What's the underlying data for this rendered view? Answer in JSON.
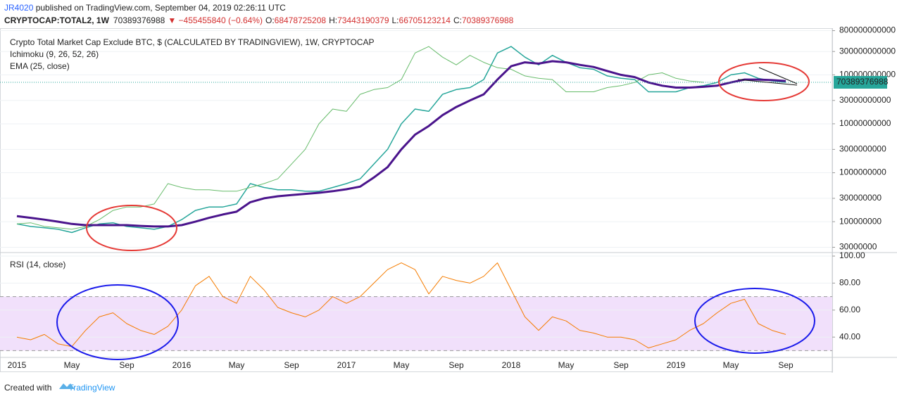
{
  "header": {
    "author": "JR4020",
    "published": " published on TradingView.com, September 04, 2019 02:26:11 UTC",
    "symbol": "CRYPTOCAP:TOTAL2, 1W",
    "last": "70389376988",
    "change": "▼ −455455840 (−0.64%)",
    "ohlc": [
      {
        "label": "O:",
        "value": "68478725208"
      },
      {
        "label": "H:",
        "value": "73443190379"
      },
      {
        "label": "L:",
        "value": "66705123214"
      },
      {
        "label": "C:",
        "value": "70389376988"
      }
    ]
  },
  "footer": {
    "created": "Created with",
    "brand": "TradingView"
  },
  "chart_data": [
    {
      "type": "line",
      "title": "Crypto Total Market Cap Exclude BTC, $ (CALCULATED BY TRADINGVIEW), 1W, CRYPTOCAP",
      "log_scale": true,
      "grid": true,
      "categories": [
        "2015",
        null,
        null,
        null,
        "May",
        null,
        null,
        null,
        "Sep",
        null,
        null,
        null,
        "2016",
        null,
        null,
        null,
        "May",
        null,
        null,
        null,
        "Sep",
        null,
        null,
        null,
        "2017",
        null,
        null,
        null,
        "May",
        null,
        null,
        null,
        "Sep",
        null,
        null,
        null,
        "2018",
        null,
        null,
        null,
        "May",
        null,
        null,
        null,
        "Sep",
        null,
        null,
        null,
        "2019",
        null,
        null,
        null,
        "May",
        null,
        null,
        null,
        "Sep",
        null,
        null,
        null
      ],
      "series": [
        {
          "color": "#26a69a",
          "width": 1.5,
          "values": [
            90000000,
            80000000,
            75000000,
            70000000,
            60000000,
            75000000,
            90000000,
            95000000,
            80000000,
            75000000,
            70000000,
            80000000,
            110000000,
            170000000,
            200000000,
            200000000,
            230000000,
            600000000,
            500000000,
            450000000,
            450000000,
            420000000,
            420000000,
            500000000,
            600000000,
            750000000,
            1500000000,
            3000000000,
            10000000000,
            20000000000,
            18000000000,
            40000000000,
            50000000000,
            55000000000,
            80000000000,
            280000000000,
            380000000000,
            230000000000,
            160000000000,
            250000000000,
            180000000000,
            140000000000,
            130000000000,
            95000000000,
            85000000000,
            80000000000,
            45000000000,
            45000000000,
            45000000000,
            55000000000,
            60000000000,
            70000000000,
            100000000000,
            110000000000,
            85000000000,
            75000000000,
            70389376988,
            null,
            null,
            null
          ]
        },
        {
          "name": "Ichimoku (9, 26, 52, 26)",
          "color": "#66bb6a",
          "width": 1,
          "values": [
            90000000,
            95000000,
            80000000,
            75000000,
            70000000,
            80000000,
            110000000,
            170000000,
            200000000,
            200000000,
            230000000,
            600000000,
            500000000,
            450000000,
            450000000,
            420000000,
            420000000,
            500000000,
            600000000,
            750000000,
            1500000000,
            3000000000,
            10000000000,
            20000000000,
            18000000000,
            40000000000,
            50000000000,
            55000000000,
            80000000000,
            280000000000,
            380000000000,
            230000000000,
            160000000000,
            250000000000,
            180000000000,
            140000000000,
            130000000000,
            95000000000,
            85000000000,
            80000000000,
            45000000000,
            45000000000,
            45000000000,
            55000000000,
            60000000000,
            70000000000,
            100000000000,
            110000000000,
            85000000000,
            75000000000,
            70389376988,
            null,
            null,
            null,
            null,
            null,
            null,
            null,
            null,
            null
          ]
        },
        {
          "name": "EMA (25, close)",
          "color": "#4a148c",
          "width": 3,
          "values": [
            130000000,
            120000000,
            110000000,
            100000000,
            90000000,
            85000000,
            85000000,
            85000000,
            85000000,
            82000000,
            80000000,
            80000000,
            85000000,
            100000000,
            120000000,
            140000000,
            160000000,
            250000000,
            300000000,
            330000000,
            350000000,
            370000000,
            390000000,
            420000000,
            460000000,
            520000000,
            800000000,
            1300000000,
            3000000000,
            6000000000,
            9000000000,
            15000000000,
            22000000000,
            30000000000,
            40000000000,
            80000000000,
            150000000000,
            180000000000,
            170000000000,
            190000000000,
            180000000000,
            160000000000,
            145000000000,
            120000000000,
            100000000000,
            90000000000,
            70000000000,
            60000000000,
            55000000000,
            55000000000,
            57000000000,
            60000000000,
            70000000000,
            80000000000,
            80000000000,
            78000000000,
            75000000000,
            null,
            null,
            null
          ]
        }
      ],
      "ylim": [
        25000000,
        900000000000
      ],
      "yticks": [
        800000000000,
        300000000000,
        100000000000,
        30000000000,
        10000000000,
        3000000000,
        1000000000,
        300000000,
        100000000,
        30000000
      ]
    },
    {
      "type": "line",
      "log_scale": false,
      "grid": true,
      "band": [
        30,
        70
      ],
      "band_color": "#f1e0fb",
      "series": [
        {
          "name": "RSI (14, close)",
          "color": "#f57c00",
          "width": 1,
          "values": [
            40,
            38,
            42,
            35,
            33,
            45,
            55,
            58,
            50,
            45,
            42,
            48,
            60,
            78,
            85,
            70,
            65,
            85,
            75,
            62,
            58,
            55,
            60,
            70,
            65,
            70,
            80,
            90,
            95,
            90,
            72,
            85,
            82,
            80,
            85,
            95,
            75,
            55,
            45,
            55,
            52,
            45,
            43,
            40,
            40,
            38,
            32,
            35,
            38,
            45,
            50,
            58,
            65,
            68,
            50,
            45,
            42,
            null,
            null,
            null
          ]
        }
      ],
      "ylim": [
        25,
        100
      ],
      "yticks": [
        {
          "value": 100,
          "label": "100.00"
        },
        {
          "value": 80,
          "label": "80.00"
        },
        {
          "value": 60,
          "label": "60.00"
        },
        {
          "value": 40,
          "label": "40.00"
        }
      ]
    }
  ]
}
